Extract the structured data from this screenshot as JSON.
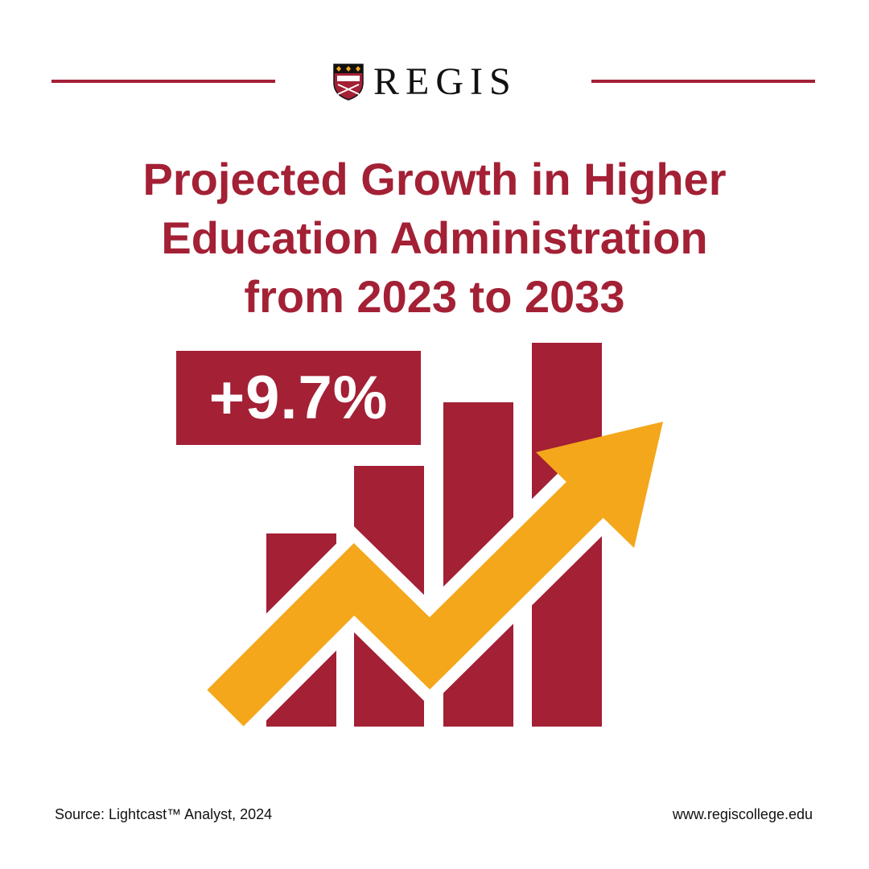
{
  "brand": {
    "name": "REGIS",
    "logo_icon": "shield-crest-icon"
  },
  "headline": {
    "line1": "Projected Growth in Higher",
    "line2": "Education Administration",
    "line3": "from 2023 to 2033"
  },
  "stat": {
    "value": "+9.7%"
  },
  "footer": {
    "source": "Source: Lightcast™ Analyst, 2024",
    "url": "www.regiscollege.edu"
  },
  "colors": {
    "brand_red": "#a32035",
    "arrow_gold": "#f4a71b",
    "text": "#111111",
    "background": "#ffffff"
  }
}
